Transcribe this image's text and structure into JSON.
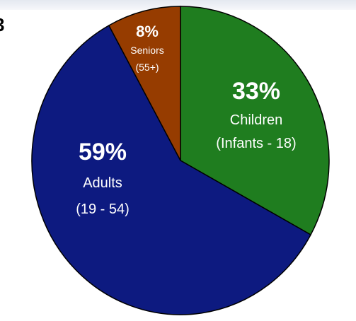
{
  "corner_text": "3",
  "chart_data": {
    "type": "pie",
    "title": "",
    "slices": [
      {
        "percent_label": "33%",
        "name": "Children",
        "sub": "(Infants - 18)",
        "value": 33,
        "color": "#1f7d1f"
      },
      {
        "percent_label": "59%",
        "name": "Adults",
        "sub": "(19 - 54)",
        "value": 59,
        "color": "#0d1a80"
      },
      {
        "percent_label": "8%",
        "name": "Seniors",
        "sub": "(55+)",
        "value": 8,
        "color": "#963c00"
      }
    ],
    "edge_color": "#000000"
  }
}
